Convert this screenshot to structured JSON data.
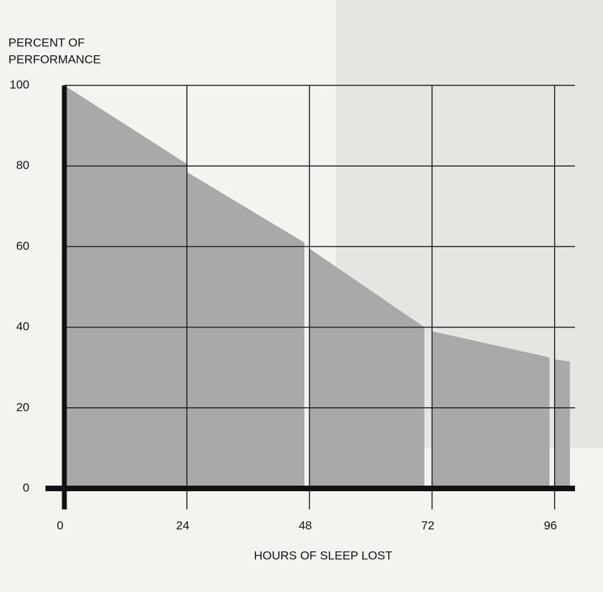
{
  "chart_data": {
    "type": "area",
    "y_label": [
      "PERCENT OF",
      "PERFORMANCE"
    ],
    "x_label": "HOURS OF SLEEP LOST",
    "color": "#a9a9a9",
    "segments": [
      {
        "x": [
          0,
          24
        ],
        "values": [
          100,
          80.5
        ]
      },
      {
        "x": [
          24,
          47
        ],
        "values": [
          78.5,
          61
        ]
      },
      {
        "x": [
          48,
          70.5
        ],
        "values": [
          59.5,
          40
        ]
      },
      {
        "x": [
          72,
          95
        ],
        "values": [
          39,
          32.5
        ]
      },
      {
        "x": [
          96,
          99
        ],
        "values": [
          32,
          31.5
        ]
      }
    ],
    "xlim": [
      0,
      100
    ],
    "xticks": [
      0,
      24,
      48,
      72,
      96
    ],
    "ylim": [
      0,
      100
    ],
    "yticks": [
      0,
      20,
      40,
      60,
      80,
      100
    ],
    "grid": true
  }
}
